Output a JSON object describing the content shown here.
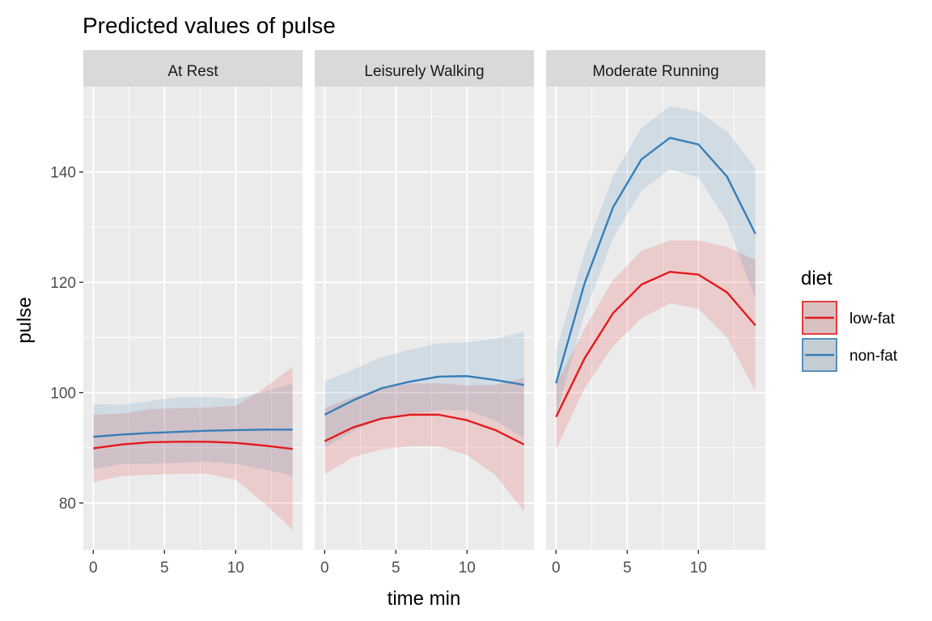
{
  "chart_data": {
    "type": "line",
    "title": "Predicted values of pulse",
    "xlabel": "time min",
    "ylabel": "pulse",
    "xlim": [
      -0.7,
      14.7
    ],
    "ylim": [
      71.5,
      155.5
    ],
    "x_ticks": [
      0,
      5,
      10
    ],
    "y_ticks": [
      80,
      100,
      120,
      140
    ],
    "x": [
      0,
      2,
      4,
      6,
      8,
      10,
      12,
      14
    ],
    "colors": {
      "low-fat": "#E41A1C",
      "non-fat": "#377EB8"
    },
    "legend": {
      "title": "diet",
      "position": "right",
      "entries": [
        "low-fat",
        "non-fat"
      ]
    },
    "facets": [
      {
        "label": "At Rest",
        "series": [
          {
            "name": "low-fat",
            "values": [
              89.9,
              90.6,
              91.0,
              91.1,
              91.1,
              90.9,
              90.4,
              89.8
            ],
            "lower": [
              83.8,
              84.9,
              85.1,
              85.3,
              85.3,
              84.2,
              80.0,
              75.1
            ],
            "upper": [
              96.0,
              96.2,
              97.0,
              97.2,
              97.3,
              97.6,
              100.8,
              104.7
            ]
          },
          {
            "name": "non-fat",
            "values": [
              92.0,
              92.4,
              92.7,
              92.9,
              93.1,
              93.2,
              93.3,
              93.3
            ],
            "lower": [
              86.1,
              87.1,
              87.1,
              87.3,
              87.5,
              87.1,
              86.1,
              84.9
            ],
            "upper": [
              97.9,
              97.8,
              98.5,
              99.2,
              99.2,
              98.9,
              100.2,
              101.6
            ]
          }
        ]
      },
      {
        "label": "Leisurely Walking",
        "series": [
          {
            "name": "low-fat",
            "values": [
              91.2,
              93.7,
              95.3,
              96.0,
              96.0,
              95.0,
              93.2,
              90.6
            ],
            "lower": [
              85.2,
              88.3,
              89.7,
              90.3,
              90.3,
              88.7,
              85.0,
              78.5
            ],
            "upper": [
              97.2,
              99.2,
              100.9,
              101.6,
              101.7,
              101.3,
              101.4,
              102.7
            ]
          },
          {
            "name": "non-fat",
            "values": [
              96.0,
              98.6,
              100.8,
              102.0,
              102.9,
              103.0,
              102.3,
              101.4
            ],
            "lower": [
              90.0,
              93.0,
              95.2,
              96.2,
              96.8,
              96.8,
              94.9,
              91.8
            ],
            "upper": [
              102.0,
              104.2,
              106.4,
              107.8,
              108.9,
              109.1,
              109.8,
              111.0
            ]
          }
        ]
      },
      {
        "label": "Moderate Running",
        "series": [
          {
            "name": "low-fat",
            "values": [
              95.6,
              106.2,
              114.4,
              119.6,
              121.9,
              121.4,
              118.2,
              112.2
            ],
            "lower": [
              89.7,
              100.8,
              108.4,
              113.5,
              116.2,
              115.2,
              110.0,
              100.3
            ],
            "upper": [
              101.5,
              111.6,
              120.4,
              125.7,
              127.6,
              127.6,
              126.4,
              124.1
            ]
          },
          {
            "name": "non-fat",
            "values": [
              101.7,
              119.8,
              133.6,
              142.3,
              146.2,
              145.0,
              139.2,
              128.8
            ],
            "lower": [
              95.8,
              114.3,
              128.0,
              136.6,
              140.5,
              139.0,
              131.0,
              116.9
            ],
            "upper": [
              107.6,
              125.3,
              139.2,
              148.0,
              151.9,
              151.0,
              147.4,
              140.7
            ]
          }
        ]
      }
    ]
  }
}
